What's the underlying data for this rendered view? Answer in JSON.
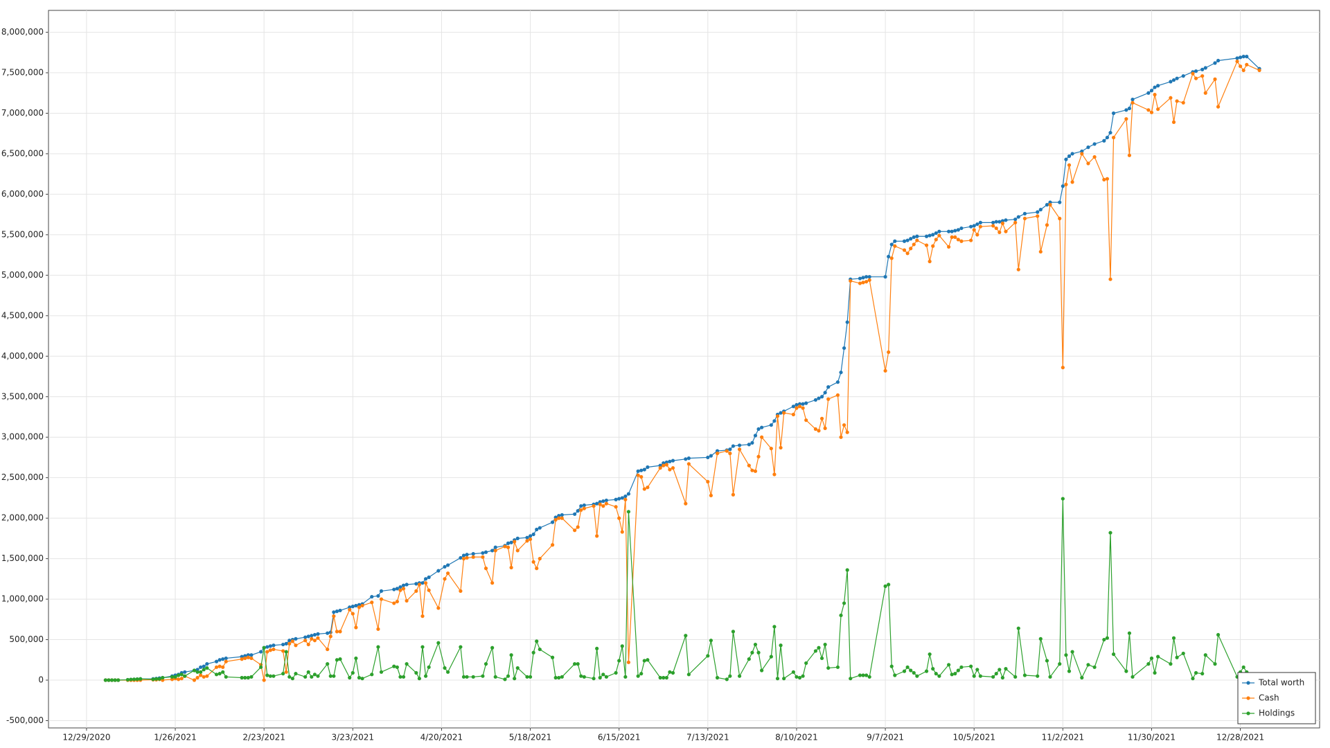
{
  "chart_data": {
    "type": "line",
    "x": [
      "1/4/2021",
      "1/5/2021",
      "1/6/2021",
      "1/7/2021",
      "1/8/2021",
      "1/11/2021",
      "1/12/2021",
      "1/13/2021",
      "1/14/2021",
      "1/15/2021",
      "1/19/2021",
      "1/20/2021",
      "1/21/2021",
      "1/22/2021",
      "1/25/2021",
      "1/26/2021",
      "1/27/2021",
      "1/28/2021",
      "1/29/2021",
      "2/1/2021",
      "2/2/2021",
      "2/3/2021",
      "2/4/2021",
      "2/5/2021",
      "2/8/2021",
      "2/9/2021",
      "2/10/2021",
      "2/11/2021",
      "2/16/2021",
      "2/17/2021",
      "2/18/2021",
      "2/19/2021",
      "2/22/2021",
      "2/23/2021",
      "2/24/2021",
      "2/25/2021",
      "2/26/2021",
      "3/1/2021",
      "3/2/2021",
      "3/3/2021",
      "3/4/2021",
      "3/5/2021",
      "3/8/2021",
      "3/9/2021",
      "3/10/2021",
      "3/11/2021",
      "3/12/2021",
      "3/15/2021",
      "3/16/2021",
      "3/17/2021",
      "3/18/2021",
      "3/19/2021",
      "3/22/2021",
      "3/23/2021",
      "3/24/2021",
      "3/25/2021",
      "3/26/2021",
      "3/29/2021",
      "3/31/2021",
      "4/1/2021",
      "4/5/2021",
      "4/6/2021",
      "4/7/2021",
      "4/8/2021",
      "4/9/2021",
      "4/12/2021",
      "4/13/2021",
      "4/14/2021",
      "4/15/2021",
      "4/16/2021",
      "4/19/2021",
      "4/21/2021",
      "4/22/2021",
      "4/26/2021",
      "4/27/2021",
      "4/28/2021",
      "4/30/2021",
      "5/3/2021",
      "5/4/2021",
      "5/6/2021",
      "5/7/2021",
      "5/10/2021",
      "5/11/2021",
      "5/12/2021",
      "5/13/2021",
      "5/14/2021",
      "5/17/2021",
      "5/18/2021",
      "5/19/2021",
      "5/20/2021",
      "5/21/2021",
      "5/25/2021",
      "5/26/2021",
      "5/27/2021",
      "5/28/2021",
      "6/1/2021",
      "6/2/2021",
      "6/3/2021",
      "6/4/2021",
      "6/7/2021",
      "6/8/2021",
      "6/9/2021",
      "6/10/2021",
      "6/11/2021",
      "6/14/2021",
      "6/15/2021",
      "6/16/2021",
      "6/17/2021",
      "6/18/2021",
      "6/21/2021",
      "6/22/2021",
      "6/23/2021",
      "6/24/2021",
      "6/28/2021",
      "6/29/2021",
      "6/30/2021",
      "7/1/2021",
      "7/2/2021",
      "7/6/2021",
      "7/7/2021",
      "7/13/2021",
      "7/14/2021",
      "7/16/2021",
      "7/19/2021",
      "7/20/2021",
      "7/21/2021",
      "7/23/2021",
      "7/26/2021",
      "7/27/2021",
      "7/28/2021",
      "7/29/2021",
      "7/30/2021",
      "8/2/2021",
      "8/3/2021",
      "8/4/2021",
      "8/5/2021",
      "8/6/2021",
      "8/9/2021",
      "8/10/2021",
      "8/11/2021",
      "8/12/2021",
      "8/13/2021",
      "8/16/2021",
      "8/17/2021",
      "8/18/2021",
      "8/19/2021",
      "8/20/2021",
      "8/23/2021",
      "8/24/2021",
      "8/25/2021",
      "8/26/2021",
      "8/27/2021",
      "8/30/2021",
      "8/31/2021",
      "9/1/2021",
      "9/2/2021",
      "9/7/2021",
      "9/8/2021",
      "9/9/2021",
      "9/10/2021",
      "9/13/2021",
      "9/14/2021",
      "9/15/2021",
      "9/16/2021",
      "9/17/2021",
      "9/20/2021",
      "9/21/2021",
      "9/22/2021",
      "9/23/2021",
      "9/24/2021",
      "9/27/2021",
      "9/28/2021",
      "9/29/2021",
      "9/30/2021",
      "10/1/2021",
      "10/4/2021",
      "10/5/2021",
      "10/6/2021",
      "10/7/2021",
      "10/11/2021",
      "10/12/2021",
      "10/13/2021",
      "10/14/2021",
      "10/15/2021",
      "10/18/2021",
      "10/19/2021",
      "10/21/2021",
      "10/25/2021",
      "10/26/2021",
      "10/28/2021",
      "10/29/2021",
      "11/1/2021",
      "11/2/2021",
      "11/3/2021",
      "11/4/2021",
      "11/5/2021",
      "11/8/2021",
      "11/10/2021",
      "11/12/2021",
      "11/15/2021",
      "11/16/2021",
      "11/17/2021",
      "11/18/2021",
      "11/22/2021",
      "11/23/2021",
      "11/24/2021",
      "11/29/2021",
      "11/30/2021",
      "12/1/2021",
      "12/2/2021",
      "12/6/2021",
      "12/7/2021",
      "12/8/2021",
      "12/10/2021",
      "12/13/2021",
      "12/14/2021",
      "12/16/2021",
      "12/17/2021",
      "12/20/2021",
      "12/21/2021",
      "12/27/2021",
      "12/28/2021",
      "12/29/2021",
      "12/30/2021",
      "1/3/2022"
    ],
    "series": [
      {
        "name": "Total worth",
        "color": "#1f77b4",
        "values": [
          0,
          0,
          0,
          0,
          0,
          5000,
          8000,
          10000,
          12000,
          15000,
          15000,
          20000,
          25000,
          30000,
          50000,
          60000,
          70000,
          90000,
          100000,
          120000,
          130000,
          160000,
          170000,
          200000,
          230000,
          250000,
          260000,
          270000,
          290000,
          300000,
          310000,
          310000,
          350000,
          400000,
          410000,
          420000,
          430000,
          440000,
          450000,
          490000,
          500000,
          510000,
          530000,
          540000,
          550000,
          560000,
          570000,
          580000,
          590000,
          840000,
          850000,
          860000,
          900000,
          910000,
          920000,
          930000,
          940000,
          1030000,
          1040000,
          1100000,
          1120000,
          1130000,
          1150000,
          1170000,
          1180000,
          1190000,
          1200000,
          1200000,
          1250000,
          1270000,
          1350000,
          1400000,
          1420000,
          1510000,
          1540000,
          1550000,
          1560000,
          1570000,
          1580000,
          1600000,
          1640000,
          1660000,
          1690000,
          1700000,
          1730000,
          1750000,
          1760000,
          1780000,
          1800000,
          1860000,
          1880000,
          1950000,
          2010000,
          2030000,
          2040000,
          2050000,
          2090000,
          2150000,
          2160000,
          2170000,
          2180000,
          2200000,
          2210000,
          2220000,
          2230000,
          2240000,
          2250000,
          2270000,
          2300000,
          2580000,
          2590000,
          2600000,
          2630000,
          2650000,
          2680000,
          2690000,
          2700000,
          2710000,
          2730000,
          2740000,
          2750000,
          2770000,
          2830000,
          2840000,
          2850000,
          2890000,
          2900000,
          2910000,
          2930000,
          3020000,
          3100000,
          3120000,
          3150000,
          3200000,
          3280000,
          3300000,
          3320000,
          3380000,
          3400000,
          3410000,
          3410000,
          3420000,
          3460000,
          3480000,
          3500000,
          3550000,
          3620000,
          3680000,
          3800000,
          4100000,
          4420000,
          4950000,
          4960000,
          4970000,
          4980000,
          4980000,
          4980000,
          5230000,
          5380000,
          5420000,
          5420000,
          5430000,
          5450000,
          5470000,
          5480000,
          5480000,
          5490000,
          5500000,
          5520000,
          5540000,
          5540000,
          5540000,
          5550000,
          5560000,
          5580000,
          5600000,
          5610000,
          5630000,
          5650000,
          5650000,
          5660000,
          5660000,
          5670000,
          5680000,
          5690000,
          5720000,
          5760000,
          5780000,
          5810000,
          5870000,
          5900000,
          5900000,
          6100000,
          6430000,
          6470000,
          6500000,
          6530000,
          6580000,
          6620000,
          6660000,
          6700000,
          6760000,
          7000000,
          7040000,
          7060000,
          7170000,
          7250000,
          7280000,
          7320000,
          7340000,
          7390000,
          7410000,
          7430000,
          7460000,
          7510000,
          7520000,
          7540000,
          7560000,
          7620000,
          7650000,
          7680000,
          7690000,
          7700000,
          7700000,
          7550000
        ]
      },
      {
        "name": "Cash",
        "color": "#ff7f0e",
        "values": [
          0,
          0,
          0,
          0,
          0,
          0,
          0,
          0,
          0,
          0,
          5000,
          5000,
          10000,
          0,
          10000,
          20000,
          10000,
          20000,
          50000,
          0,
          30000,
          60000,
          40000,
          50000,
          160000,
          170000,
          160000,
          230000,
          260000,
          270000,
          280000,
          270000,
          190000,
          0,
          350000,
          370000,
          380000,
          360000,
          100000,
          450000,
          480000,
          430000,
          490000,
          440000,
          510000,
          490000,
          520000,
          380000,
          540000,
          790000,
          600000,
          600000,
          870000,
          820000,
          650000,
          900000,
          920000,
          960000,
          630000,
          1000000,
          950000,
          970000,
          1110000,
          1130000,
          980000,
          1100000,
          1180000,
          790000,
          1200000,
          1110000,
          890000,
          1250000,
          1320000,
          1100000,
          1500000,
          1510000,
          1520000,
          1520000,
          1380000,
          1200000,
          1600000,
          1650000,
          1640000,
          1390000,
          1710000,
          1600000,
          1720000,
          1740000,
          1460000,
          1380000,
          1500000,
          1670000,
          1980000,
          2000000,
          2000000,
          1850000,
          1890000,
          2100000,
          2120000,
          2150000,
          1780000,
          2170000,
          2150000,
          2180000,
          2140000,
          2000000,
          1830000,
          2230000,
          220000,
          2530000,
          2510000,
          2360000,
          2380000,
          2620000,
          2650000,
          2660000,
          2600000,
          2620000,
          2180000,
          2670000,
          2450000,
          2280000,
          2800000,
          2830000,
          2800000,
          2290000,
          2850000,
          2650000,
          2590000,
          2580000,
          2760000,
          3000000,
          2860000,
          2540000,
          3260000,
          2870000,
          3300000,
          3280000,
          3360000,
          3380000,
          3360000,
          3210000,
          3100000,
          3080000,
          3230000,
          3110000,
          3470000,
          3520000,
          3000000,
          3150000,
          3060000,
          4930000,
          4900000,
          4910000,
          4920000,
          4940000,
          3820000,
          4050000,
          5210000,
          5360000,
          5310000,
          5270000,
          5330000,
          5380000,
          5430000,
          5370000,
          5170000,
          5360000,
          5440000,
          5490000,
          5350000,
          5470000,
          5470000,
          5440000,
          5420000,
          5430000,
          5560000,
          5500000,
          5600000,
          5610000,
          5580000,
          5530000,
          5640000,
          5540000,
          5650000,
          5070000,
          5700000,
          5730000,
          5290000,
          5620000,
          5870000,
          5700000,
          3860000,
          6120000,
          6360000,
          6150000,
          6500000,
          6380000,
          6460000,
          6180000,
          6190000,
          4950000,
          6700000,
          6930000,
          6480000,
          7130000,
          7040000,
          7010000,
          7230000,
          7050000,
          7190000,
          6890000,
          7150000,
          7130000,
          7490000,
          7430000,
          7460000,
          7250000,
          7420000,
          7080000,
          7640000,
          7580000,
          7530000,
          7600000,
          7530000
        ]
      },
      {
        "name": "Holdings",
        "color": "#2ca02c",
        "values": [
          0,
          0,
          0,
          0,
          0,
          5000,
          8000,
          10000,
          12000,
          15000,
          10000,
          15000,
          15000,
          30000,
          40000,
          40000,
          60000,
          70000,
          50000,
          120000,
          100000,
          100000,
          130000,
          150000,
          70000,
          80000,
          100000,
          40000,
          30000,
          30000,
          30000,
          40000,
          160000,
          400000,
          60000,
          50000,
          50000,
          80000,
          350000,
          40000,
          20000,
          80000,
          40000,
          100000,
          40000,
          70000,
          50000,
          200000,
          50000,
          50000,
          250000,
          260000,
          30000,
          90000,
          270000,
          30000,
          20000,
          70000,
          410000,
          100000,
          170000,
          160000,
          40000,
          40000,
          200000,
          90000,
          20000,
          410000,
          50000,
          160000,
          460000,
          150000,
          100000,
          410000,
          40000,
          40000,
          40000,
          50000,
          200000,
          400000,
          40000,
          10000,
          50000,
          310000,
          20000,
          150000,
          40000,
          40000,
          340000,
          480000,
          380000,
          280000,
          30000,
          30000,
          40000,
          200000,
          200000,
          50000,
          40000,
          20000,
          390000,
          30000,
          70000,
          40000,
          90000,
          240000,
          420000,
          40000,
          2080000,
          50000,
          80000,
          240000,
          250000,
          30000,
          30000,
          30000,
          100000,
          90000,
          550000,
          70000,
          300000,
          490000,
          30000,
          10000,
          50000,
          600000,
          50000,
          260000,
          340000,
          440000,
          340000,
          120000,
          290000,
          660000,
          20000,
          430000,
          20000,
          100000,
          40000,
          30000,
          50000,
          210000,
          360000,
          400000,
          270000,
          440000,
          150000,
          160000,
          800000,
          950000,
          1360000,
          20000,
          60000,
          60000,
          60000,
          40000,
          1160000,
          1180000,
          170000,
          60000,
          110000,
          160000,
          120000,
          90000,
          50000,
          110000,
          320000,
          140000,
          80000,
          50000,
          190000,
          70000,
          80000,
          120000,
          160000,
          170000,
          50000,
          130000,
          50000,
          40000,
          80000,
          130000,
          30000,
          140000,
          40000,
          640000,
          60000,
          50000,
          510000,
          240000,
          40000,
          200000,
          2240000,
          310000,
          110000,
          350000,
          30000,
          190000,
          160000,
          500000,
          520000,
          1820000,
          320000,
          110000,
          580000,
          40000,
          200000,
          270000,
          90000,
          290000,
          200000,
          520000,
          280000,
          330000,
          20000,
          90000,
          80000,
          310000,
          200000,
          560000,
          40000,
          100000,
          160000,
          100000,
          20000
        ]
      }
    ],
    "xlim": [
      "12/17/2020",
      "1/22/2022"
    ],
    "xticks": [
      "12/29/2020",
      "1/26/2021",
      "2/23/2021",
      "3/23/2021",
      "4/20/2021",
      "5/18/2021",
      "6/15/2021",
      "7/13/2021",
      "8/10/2021",
      "9/7/2021",
      "10/5/2021",
      "11/2/2021",
      "11/30/2021",
      "12/28/2021"
    ],
    "ylim": [
      -590000,
      8270000
    ],
    "yticks": [
      {
        "value": -500000,
        "label": "-500,000"
      },
      0,
      {
        "value": 500000,
        "label": "500,000"
      },
      {
        "value": 1000000,
        "label": "1,000,000"
      },
      {
        "value": 1500000,
        "label": "1,500,000"
      },
      {
        "value": 2000000,
        "label": "2,000,000"
      },
      {
        "value": 2500000,
        "label": "2,500,000"
      },
      {
        "value": 3000000,
        "label": "3,000,000"
      },
      {
        "value": 3500000,
        "label": "3,500,000"
      },
      {
        "value": 4000000,
        "label": "4,000,000"
      },
      {
        "value": 4500000,
        "label": "4,500,000"
      },
      {
        "value": 5000000,
        "label": "5,000,000"
      },
      {
        "value": 5500000,
        "label": "5,500,000"
      },
      {
        "value": 6000000,
        "label": "6,000,000"
      },
      {
        "value": 6500000,
        "label": "6,500,000"
      },
      {
        "value": 7000000,
        "label": "7,000,000"
      },
      {
        "value": 7500000,
        "label": "7,500,000"
      },
      {
        "value": 8000000,
        "label": "8,000,000"
      }
    ],
    "grid": true,
    "legend": "lower right",
    "markers": true
  }
}
